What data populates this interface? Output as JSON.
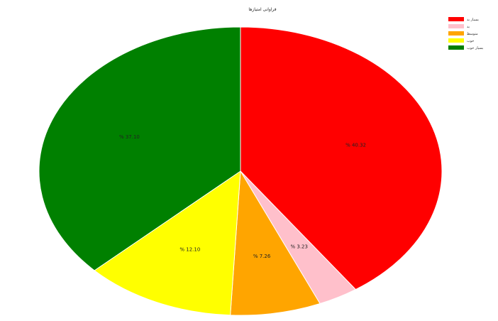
{
  "chart_data": {
    "type": "pie",
    "title": "فراوانی امتیازها",
    "categories": [
      "بسیار بد",
      "بد",
      "متوسط",
      "خوب",
      "بسیار خوب"
    ],
    "values": [
      40.32,
      3.23,
      7.26,
      12.1,
      37.1
    ],
    "labels": [
      "% 40.32",
      "% 3.23",
      "% 7.26",
      "% 12.10",
      "% 37.10"
    ],
    "colors": [
      "#ff0000",
      "#ffc0cb",
      "#ffa500",
      "#ffff00",
      "#008000"
    ],
    "start_angle": "12 o'clock",
    "direction": "clockwise",
    "legend_position": "top-right"
  }
}
